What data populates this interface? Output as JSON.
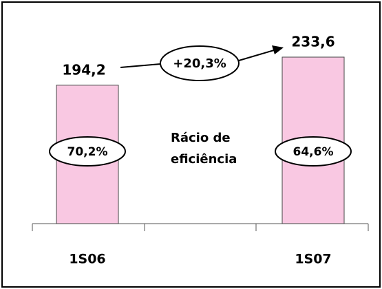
{
  "chart_data": {
    "type": "bar",
    "categories": [
      "1S06",
      "1S07"
    ],
    "values": [
      194.2,
      233.6
    ],
    "value_labels": [
      "194,2",
      "233,6"
    ],
    "color": "#f9c8e2",
    "growth_label": "+20,3%",
    "ratio_labels": [
      "70,2%",
      "64,6%"
    ],
    "ratio_title": [
      "Rácio de",
      "eficiência"
    ]
  }
}
